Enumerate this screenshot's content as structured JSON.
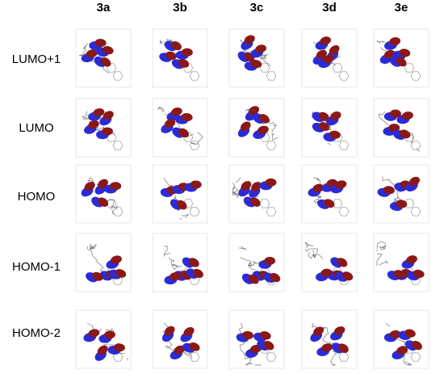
{
  "columns": [
    "3a",
    "3b",
    "3c",
    "3d",
    "3e"
  ],
  "rows": [
    "LUMO+1",
    "LUMO",
    "HOMO",
    "HOMO-1",
    "HOMO-2"
  ]
}
